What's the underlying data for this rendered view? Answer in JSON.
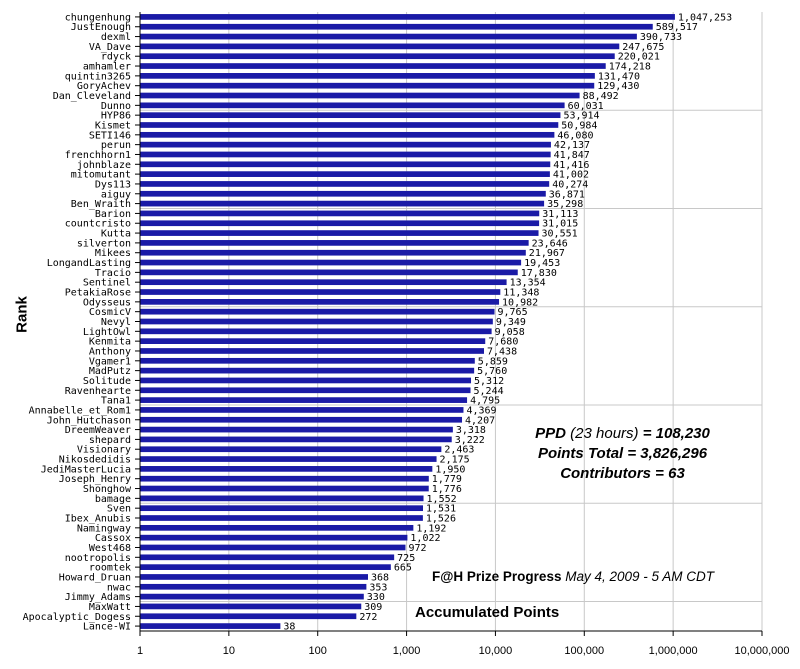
{
  "chart_data": {
    "type": "bar",
    "orientation": "horizontal",
    "xscale": "log",
    "xlim": [
      1,
      10000000
    ],
    "grid": true,
    "legend": "none",
    "bar_color": "#1a1aa6",
    "xlabel": "Accumulated Points",
    "ylabel": "Rank",
    "x_ticks": [
      "1",
      "10",
      "100",
      "1,000",
      "10,000",
      "100,000",
      "1,000,000",
      "10,000,000"
    ],
    "categories": [
      "chungenhung",
      "JustEnough",
      "dexml",
      "VA_Dave",
      "rdyck",
      "amhamler",
      "quintin3265",
      "GoryAchev",
      "Dan_Cleveland",
      "Dunno",
      "HYP86",
      "Kismet",
      "SETI146",
      "perun",
      "frenchhorn1",
      "johnblaze",
      "mitomutant",
      "Dys113",
      "aiguy",
      "Ben_Wraith",
      "Barion",
      "countcristo",
      "Kutta",
      "silverton",
      "Mikees",
      "LongandLasting",
      "Tracio",
      "Sentinel",
      "PetakiaRose",
      "Odysseus",
      "CosmicV",
      "Nevyl",
      "LightOwl",
      "Kenmita",
      "Anthony",
      "Vgamer1",
      "MadPutz",
      "Solitude",
      "Ravenhearte",
      "Tana1",
      "Annabelle_et_Rom1",
      "John_Hutchason",
      "DreemWeaver",
      "shepard",
      "Visionary",
      "Nikosdedidis",
      "JediMasterLucia",
      "Joseph_Henry",
      "Shonghow",
      "bamage",
      "Sven",
      "Ibex_Anubis",
      "Namingway",
      "Cassox",
      "West468",
      "nootropolis",
      "roomtek",
      "Howard_Druan",
      "nwac",
      "Jimmy_Adams",
      "MaxWatt",
      "Apocalyptic_Dogess",
      "Lance-WI"
    ],
    "values": [
      1047253,
      589517,
      390733,
      247675,
      220021,
      174218,
      131470,
      129430,
      88492,
      60031,
      53914,
      50984,
      46080,
      42137,
      41847,
      41416,
      41002,
      40274,
      36871,
      35298,
      31113,
      31015,
      30551,
      23646,
      21967,
      19453,
      17830,
      13354,
      11348,
      10982,
      9765,
      9349,
      9058,
      7680,
      7438,
      5859,
      5760,
      5312,
      5244,
      4795,
      4369,
      4207,
      3318,
      3222,
      2463,
      2175,
      1950,
      1779,
      1776,
      1552,
      1531,
      1526,
      1192,
      1022,
      972,
      725,
      665,
      368,
      353,
      330,
      309,
      272,
      38
    ],
    "value_labels": [
      "1,047,253",
      "589,517",
      "390,733",
      "247,675",
      "220,021",
      "174,218",
      "131,470",
      "129,430",
      "88,492",
      "60,031",
      "53,914",
      "50,984",
      "46,080",
      "42,137",
      "41,847",
      "41,416",
      "41,002",
      "40,274",
      "36,871",
      "35,298",
      "31,113",
      "31,015",
      "30,551",
      "23,646",
      "21,967",
      "19,453",
      "17,830",
      "13,354",
      "11,348",
      "10,982",
      "9,765",
      "9,349",
      "9,058",
      "7,680",
      "7,438",
      "5,859",
      "5,760",
      "5,312",
      "5,244",
      "4,795",
      "4,369",
      "4,207",
      "3,318",
      "3,222",
      "2,463",
      "2,175",
      "1,950",
      "1,779",
      "1,776",
      "1,552",
      "1,531",
      "1,526",
      "1,192",
      "1,022",
      "972",
      "725",
      "665",
      "368",
      "353",
      "330",
      "309",
      "272",
      "38"
    ]
  },
  "info": {
    "ppd_label": "PPD",
    "ppd_note": "(23 hours)",
    "ppd_value": "= 108,230",
    "points_total": "Points Total = 3,826,296",
    "contributors": "Contributors = 63"
  },
  "prize": {
    "title": "F@H Prize Progress",
    "date": "May 4, 2009 - 5 AM CDT"
  }
}
